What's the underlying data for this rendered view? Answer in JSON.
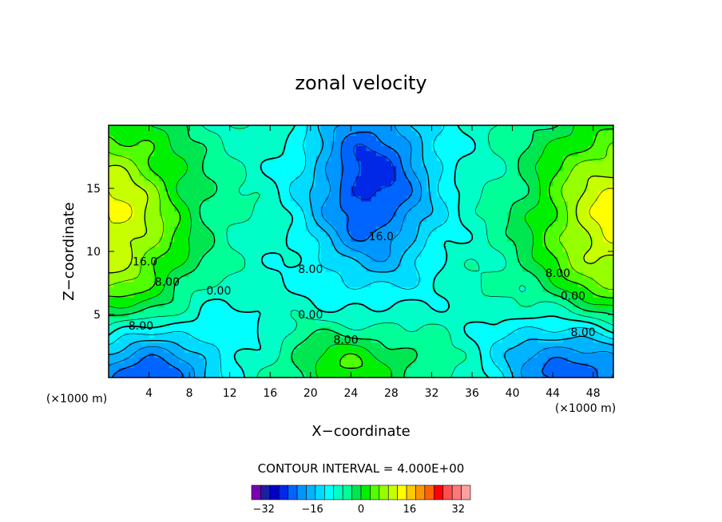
{
  "chart_data": {
    "type": "heatmap",
    "title": "zonal velocity",
    "xlabel": "X−coordinate",
    "ylabel": "Z−coordinate",
    "x_unit_label": "(×1000 m)",
    "y_unit_label": "(×1000 m)",
    "xlim": [
      0,
      50
    ],
    "ylim": [
      0,
      20
    ],
    "x_ticks": [
      4,
      8,
      12,
      16,
      20,
      24,
      28,
      32,
      36,
      40,
      44,
      48
    ],
    "y_ticks": [
      5,
      10,
      15
    ],
    "contour_interval_text": "CONTOUR INTERVAL = 4.000E+00",
    "contour_interval": 4,
    "colorbar": {
      "min": -36,
      "max": 36,
      "tick_values": [
        -32,
        -16,
        0,
        16,
        32
      ],
      "tick_labels": [
        "−32",
        "−16",
        "0",
        "16",
        "32"
      ],
      "colors": [
        "#7a00b4",
        "#1e1ea0",
        "#0000c8",
        "#0028e6",
        "#0064ff",
        "#0096ff",
        "#00b4ff",
        "#00dcff",
        "#00ffff",
        "#00ffc8",
        "#00ff96",
        "#00e650",
        "#00f000",
        "#50ff00",
        "#96ff00",
        "#c8ff00",
        "#ffff00",
        "#ffc800",
        "#ff9600",
        "#ff6400",
        "#ff0000",
        "#ff5050",
        "#ff7878",
        "#ffa0a0"
      ]
    },
    "contour_labels": [
      {
        "text": "16.0",
        "x": 3.6,
        "z": 9.2
      },
      {
        "text": "8.00",
        "x": 5.8,
        "z": 7.6
      },
      {
        "text": "0.00",
        "x": 10.9,
        "z": 6.9
      },
      {
        "text": "8.00",
        "x": 3.2,
        "z": 4.1
      },
      {
        "text": "16.0",
        "x": 27.0,
        "z": 11.2
      },
      {
        "text": "8.00",
        "x": 20.0,
        "z": 8.6
      },
      {
        "text": "0.00",
        "x": 20.0,
        "z": 5.0
      },
      {
        "text": "8.00",
        "x": 23.5,
        "z": 3.0
      },
      {
        "text": "8.00",
        "x": 44.5,
        "z": 8.3
      },
      {
        "text": "0.00",
        "x": 46.0,
        "z": 6.5
      },
      {
        "text": "8.00",
        "x": 47.0,
        "z": 3.6
      }
    ]
  }
}
